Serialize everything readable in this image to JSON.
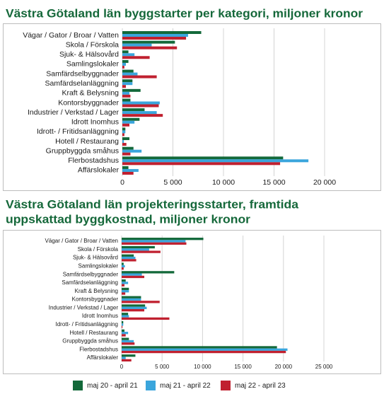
{
  "chart_data": [
    {
      "type": "bar",
      "orientation": "horizontal",
      "title": "Västra Götaland län byggstarter per kategori, miljoner kronor",
      "categories": [
        "Vägar / Gator / Broar / Vatten",
        "Skola / Förskola",
        "Sjuk- & Hälsovård",
        "Samlingslokaler",
        "Samfärdselbyggnader",
        "Samfärdselanläggning",
        "Kraft & Belysning",
        "Kontorsbyggnader",
        "Industrier / Verkstad / Lager",
        "Idrott Inomhus",
        "Idrott- / Fritidsanläggning",
        "Hotell / Restaurang",
        "Gruppbyggda småhus",
        "Flerbostadshus",
        "Affärslokaler"
      ],
      "series": [
        {
          "color": "#13693a",
          "values": [
            7800,
            5200,
            600,
            600,
            1100,
            1000,
            1800,
            800,
            2200,
            1700,
            300,
            700,
            1100,
            15900,
            600
          ]
        },
        {
          "color": "#3aa5dc",
          "values": [
            6500,
            2900,
            1200,
            350,
            1500,
            1000,
            700,
            3700,
            3400,
            1200,
            300,
            150,
            1900,
            18400,
            1600
          ]
        },
        {
          "color": "#c0202f",
          "values": [
            6300,
            5400,
            2700,
            200,
            3400,
            350,
            800,
            3600,
            4000,
            700,
            200,
            400,
            800,
            15600,
            1100
          ]
        }
      ],
      "xlim": [
        0,
        20000
      ],
      "xticks": [
        0,
        {
          "value": 5000,
          "label": "5 000"
        },
        {
          "value": 10000,
          "label": "10 000"
        },
        {
          "value": 15000,
          "label": "15 000"
        },
        {
          "value": 20000,
          "label": "20 000"
        }
      ],
      "grid": true
    },
    {
      "type": "bar",
      "orientation": "horizontal",
      "title": [
        "Västra Götaland län projekteringsstarter, framtida",
        "uppskattad byggkostnad, miljoner kronor"
      ],
      "categories": [
        "Vägar / Gator / Broar / Vatten",
        "Skola / Förskola",
        "Sjuk- & Hälsovård",
        "Samlingslokaler",
        "Samfärdselbyggnader",
        "Samfärdselanläggning",
        "Kraft & Belysning",
        "Kontorsbyggnader",
        "Industrier / Verkstad / Lager",
        "Idrott Inomhus",
        "Idrott- / Fritidsanläggning",
        "Hotell / Restaurang",
        "Gruppbyggda småhus",
        "Flerbostadshus",
        "Affärslokaler"
      ],
      "series": [
        {
          "name": "maj 20 - april 21",
          "color": "#13693a",
          "values": [
            10100,
            4100,
            1500,
            250,
            6500,
            500,
            900,
            2400,
            2900,
            800,
            200,
            350,
            900,
            19200,
            1700
          ]
        },
        {
          "name": "maj 21 - april 22",
          "color": "#3aa5dc",
          "values": [
            7900,
            3400,
            1700,
            400,
            2500,
            800,
            900,
            2400,
            3100,
            900,
            200,
            800,
            1500,
            20500,
            500
          ]
        },
        {
          "name": "maj 22 - april 23",
          "color": "#c0202f",
          "values": [
            8000,
            4800,
            1800,
            250,
            2800,
            350,
            450,
            4700,
            2800,
            5900,
            100,
            500,
            1600,
            20300,
            1200
          ]
        }
      ],
      "xlim": [
        0,
        25000
      ],
      "xticks": [
        0,
        {
          "value": 5000,
          "label": "5 000"
        },
        {
          "value": 10000,
          "label": "10 000"
        },
        {
          "value": 15000,
          "label": "15 000"
        },
        {
          "value": 20000,
          "label": "20 000"
        },
        {
          "value": 25000,
          "label": "25 000"
        }
      ],
      "grid": true
    }
  ]
}
